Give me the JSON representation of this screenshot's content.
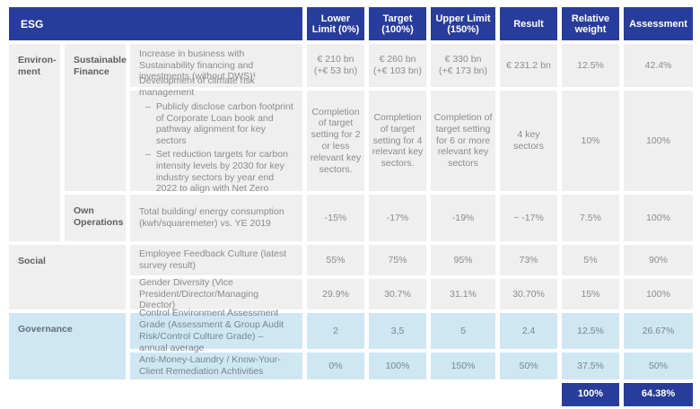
{
  "colors": {
    "header_blue": "#283d9b",
    "governance_light_blue": "#cfe7f3",
    "cell_gray": "#efefef"
  },
  "header": {
    "esg_label": "ESG",
    "lower_limit": "Lower Limit (0%)",
    "target": "Target (100%)",
    "upper_limit": "Upper Limit (150%)",
    "result": "Result",
    "relative_weight": "Relative weight",
    "assessment": "Assessment"
  },
  "sections": {
    "environment_label": "Environ-\nment",
    "sustainable_finance_label": "Sustainable Finance",
    "own_operations_label": "Own Operations",
    "social_label": "Social",
    "governance_label": "Governance"
  },
  "rows": {
    "sustainability_financing": {
      "description": "Increase in business with Sustainability financing and investments (without DWS)¹",
      "lower": "€ 210 bn\n(+€ 53 bn)",
      "target": "€ 260 bn\n(+€ 103 bn)",
      "upper": "€ 330 bn\n(+€ 173 bn)",
      "result": "€ 231.2 bn",
      "weight": "12.5%",
      "assessment": "42.4%"
    },
    "climate_risk": {
      "title": "Development of climate risk management",
      "bullet_marker": "–",
      "bullets": [
        "Publicly disclose carbon footprint of Corporate Loan book and pathway alignment for key sectors",
        "Set reduction targets for carbon intensity levels by 2030 for key industry sectors by year end 2022 to align with Net Zero Banking Alliance commitment"
      ],
      "lower": "Completion of target setting for 2 or less relevant key sectors.",
      "target": "Completion of target setting for 4 relevant key sectors.",
      "upper": "Completion of target setting for 6 or more relevant key sectors",
      "result": "4 key sectors",
      "weight": "10%",
      "assessment": "100%"
    },
    "own_operations": {
      "description": "Total building/ energy consumption (kwh/squaremeter) vs. YE 2019",
      "lower": "-15%",
      "target": "-17%",
      "upper": "-19%",
      "result": "~ -17%",
      "weight": "7.5%",
      "assessment": "100%"
    },
    "employee_feedback": {
      "description": "Employee Feedback Culture (latest survey result)",
      "lower": "55%",
      "target": "75%",
      "upper": "95%",
      "result": "73%",
      "weight": "5%",
      "assessment": "90%"
    },
    "gender_diversity": {
      "description": "Gender Diversity (Vice President/Director/Managing Director)",
      "lower": "29.9%",
      "target": "30.7%",
      "upper": "31.1%",
      "result": "30.70%",
      "weight": "15%",
      "assessment": "100%"
    },
    "control_environment": {
      "description": "Control Environment Assessment Grade (Assessment & Group Audit Risk/Control Culture Grade) – annual average",
      "lower": "2",
      "target": "3,5",
      "upper": "5",
      "result": "2.4",
      "weight": "12.5%",
      "assessment": "26.67%"
    },
    "aml_kyc": {
      "description": "Anti-Money-Laundry / Know-Your-Client Remediation Achtivities",
      "lower": "0%",
      "target": "100%",
      "upper": "150%",
      "result": "50%",
      "weight": "37.5%",
      "assessment": "50%"
    }
  },
  "footer": {
    "weight_total": "100%",
    "assessment_total": "64.38%"
  }
}
